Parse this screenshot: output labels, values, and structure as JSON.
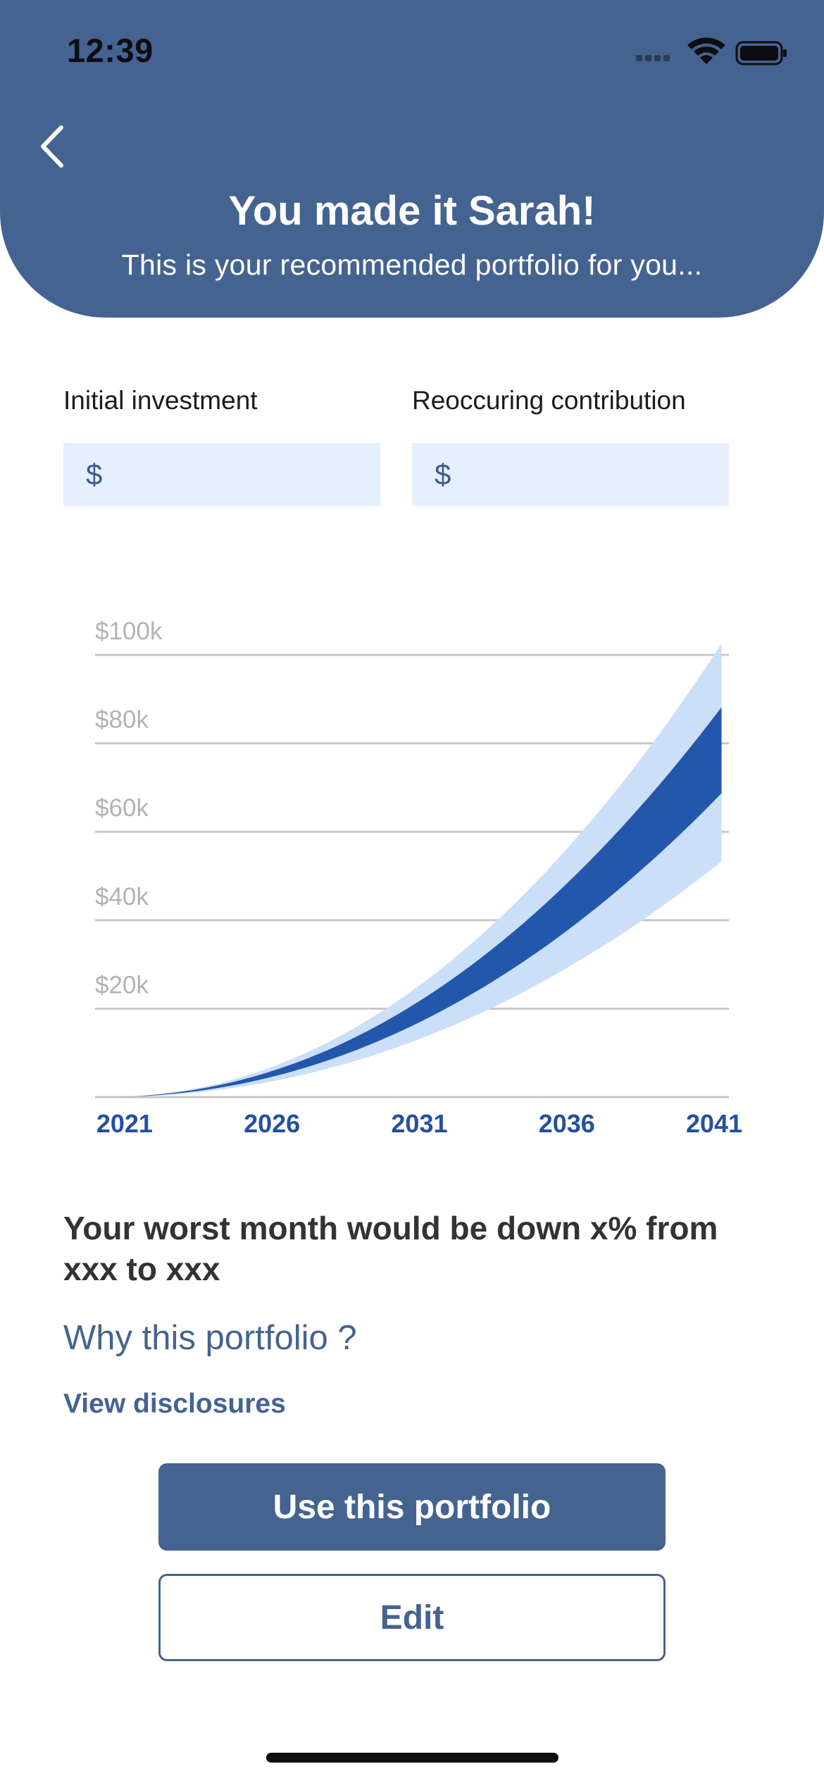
{
  "status_bar": {
    "time": "12:39"
  },
  "header": {
    "title": "You made it Sarah!",
    "subtitle": "This is your recommended portfolio for you..."
  },
  "inputs": {
    "initial": {
      "label": "Initial investment",
      "currency": "$",
      "value": ""
    },
    "recurring": {
      "label": "Reoccuring contribution",
      "currency": "$",
      "value": ""
    }
  },
  "chart_data": {
    "type": "area",
    "x": [
      2021,
      2026,
      2031,
      2036,
      2041
    ],
    "x_tick_labels": [
      "2021",
      "2026",
      "2031",
      "2036",
      "2041"
    ],
    "y_tick_labels": [
      "$20k",
      "$40k",
      "$60k",
      "$80k",
      "$100k"
    ],
    "y_ticks": [
      20000,
      40000,
      60000,
      80000,
      100000
    ],
    "ylim": [
      0,
      100000
    ],
    "xlim": [
      2020,
      2041.5
    ],
    "grid": true,
    "series": [
      {
        "upper": [
          0,
          7500,
          28000,
          60000,
          100000
        ],
        "lower": [
          0,
          3500,
          14000,
          30000,
          52000
        ],
        "color": "#cbdff8"
      },
      {
        "upper": [
          0,
          5700,
          22000,
          48000,
          86000
        ],
        "lower": [
          0,
          4400,
          17500,
          38000,
          67000
        ],
        "color": "#2357ab"
      }
    ],
    "colors": {
      "grid": "#c8c8c8",
      "y_label": "#b3b3b3",
      "x_label": "#2450a0"
    }
  },
  "worst_month_text": "Your worst month would be down x% from xxx to xxx",
  "links": {
    "why": "Why this portfolio ?",
    "disclosures": "View disclosures"
  },
  "buttons": {
    "primary": "Use this portfolio",
    "secondary": "Edit"
  }
}
